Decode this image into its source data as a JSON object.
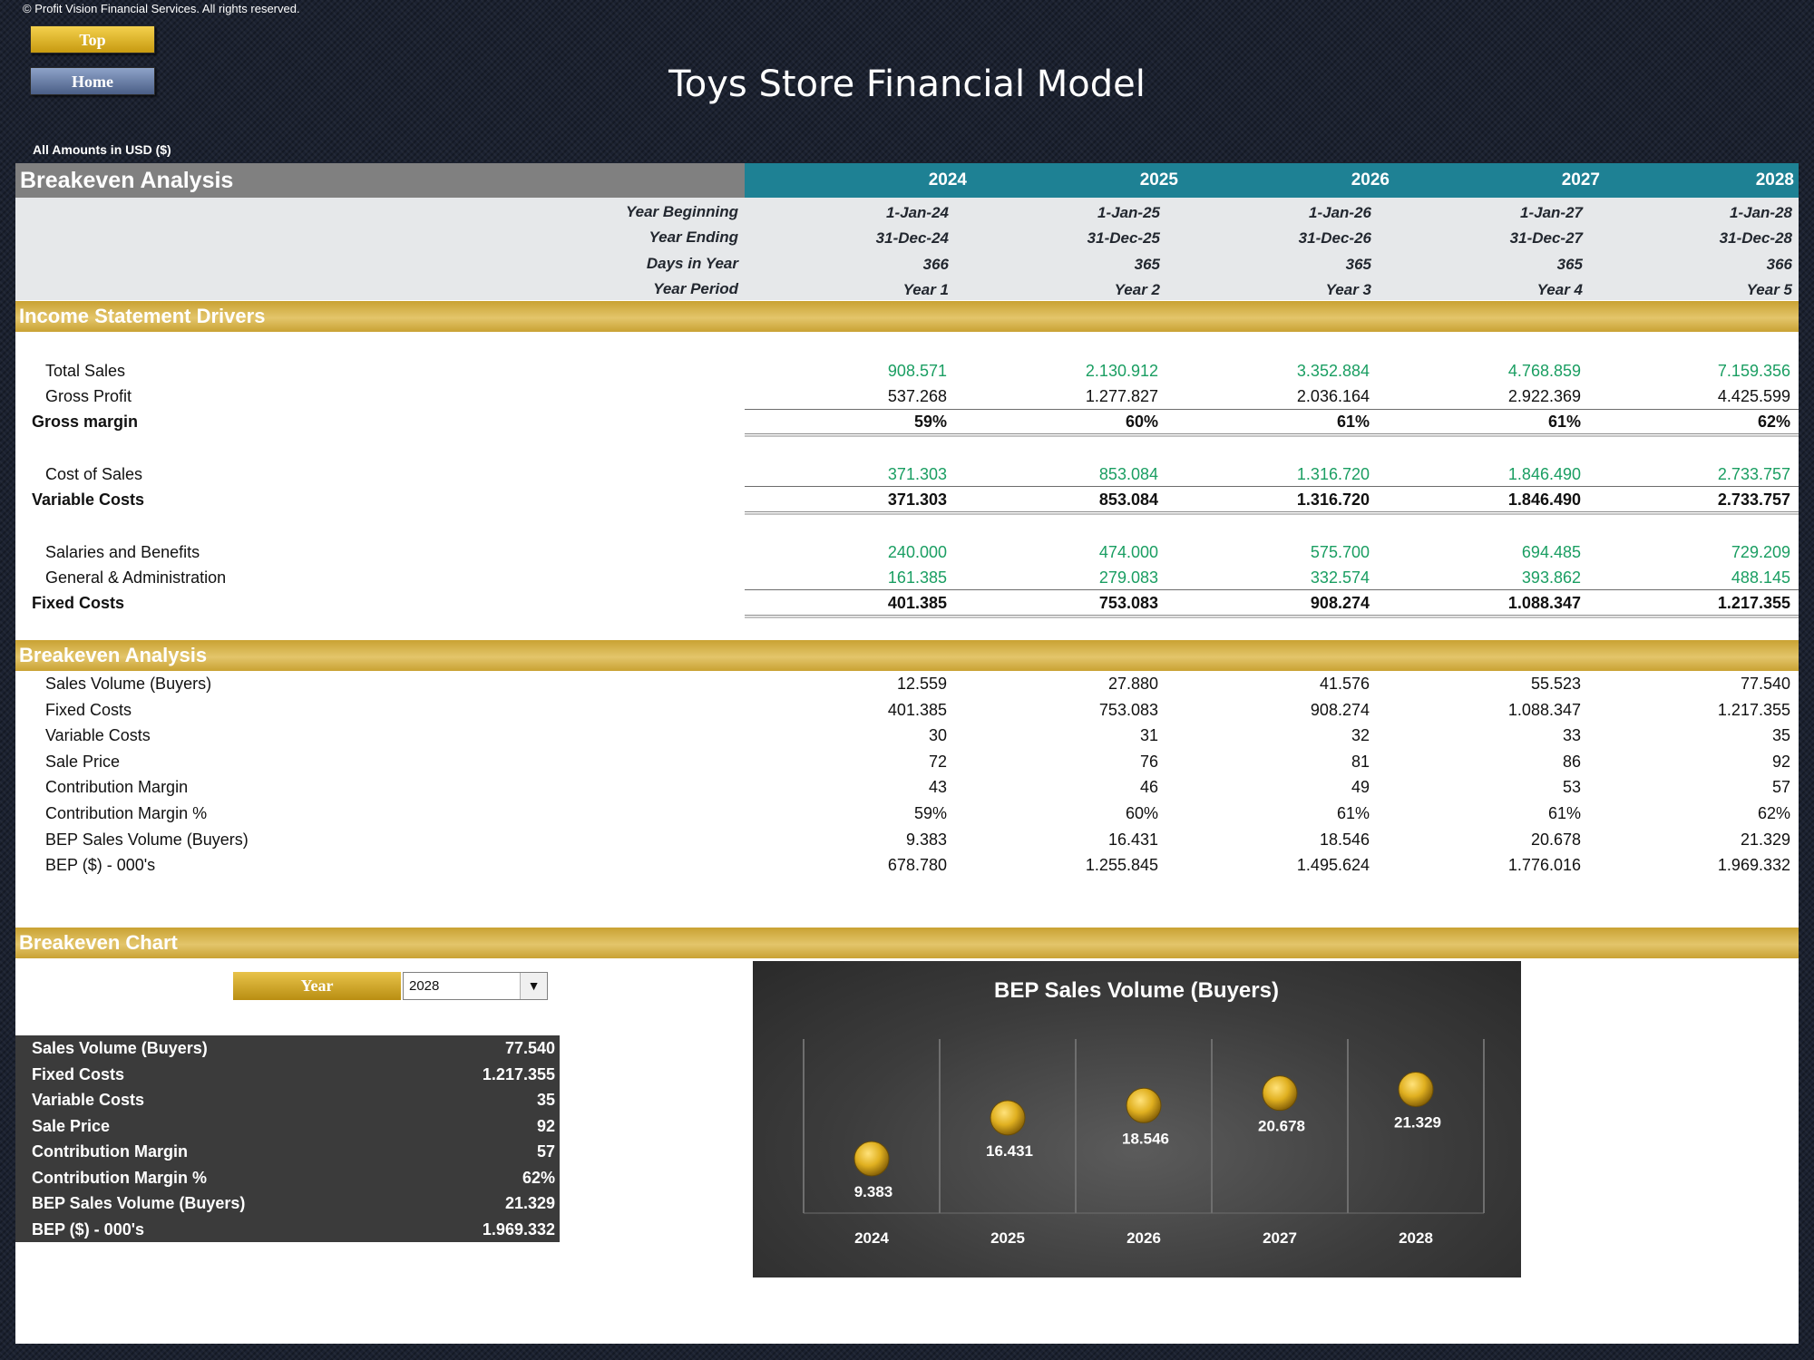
{
  "header": {
    "copyright": "© Profit Vision Financial Services. All rights reserved.",
    "top_button": "Top",
    "home_button": "Home",
    "app_title": "Toys Store Financial Model",
    "amounts_note": "All Amounts in  USD ($)"
  },
  "table_header": {
    "title": "Breakeven Analysis",
    "years": [
      "2024",
      "2025",
      "2026",
      "2027",
      "2028"
    ]
  },
  "period_info": {
    "labels": {
      "year_beginning": "Year Beginning",
      "year_ending": "Year Ending",
      "days_in_year": "Days in Year",
      "year_period": "Year Period"
    },
    "year_beginning": [
      "1-Jan-24",
      "1-Jan-25",
      "1-Jan-26",
      "1-Jan-27",
      "1-Jan-28"
    ],
    "year_ending": [
      "31-Dec-24",
      "31-Dec-25",
      "31-Dec-26",
      "31-Dec-27",
      "31-Dec-28"
    ],
    "days_in_year": [
      "366",
      "365",
      "365",
      "365",
      "366"
    ],
    "year_period": [
      "Year 1",
      "Year 2",
      "Year 3",
      "Year 4",
      "Year 5"
    ]
  },
  "income_statement_drivers": {
    "title": "Income Statement Drivers",
    "total_sales": {
      "label": "Total Sales",
      "values": [
        "908.571",
        "2.130.912",
        "3.352.884",
        "4.768.859",
        "7.159.356"
      ]
    },
    "gross_profit": {
      "label": "Gross Profit",
      "values": [
        "537.268",
        "1.277.827",
        "2.036.164",
        "2.922.369",
        "4.425.599"
      ]
    },
    "gross_margin": {
      "label": "Gross margin",
      "values": [
        "59%",
        "60%",
        "61%",
        "61%",
        "62%"
      ]
    },
    "cost_of_sales": {
      "label": "Cost of Sales",
      "values": [
        "371.303",
        "853.084",
        "1.316.720",
        "1.846.490",
        "2.733.757"
      ]
    },
    "variable_costs": {
      "label": "Variable Costs",
      "values": [
        "371.303",
        "853.084",
        "1.316.720",
        "1.846.490",
        "2.733.757"
      ]
    },
    "salaries": {
      "label": "Salaries and Benefits",
      "values": [
        "240.000",
        "474.000",
        "575.700",
        "694.485",
        "729.209"
      ]
    },
    "ga": {
      "label": "General & Administration",
      "values": [
        "161.385",
        "279.083",
        "332.574",
        "393.862",
        "488.145"
      ]
    },
    "fixed_costs": {
      "label": "Fixed Costs",
      "values": [
        "401.385",
        "753.083",
        "908.274",
        "1.088.347",
        "1.217.355"
      ]
    }
  },
  "breakeven_analysis": {
    "title": "Breakeven Analysis",
    "rows": [
      {
        "label": "Sales Volume (Buyers)",
        "values": [
          "12.559",
          "27.880",
          "41.576",
          "55.523",
          "77.540"
        ]
      },
      {
        "label": "Fixed Costs",
        "values": [
          "401.385",
          "753.083",
          "908.274",
          "1.088.347",
          "1.217.355"
        ]
      },
      {
        "label": "Variable Costs",
        "values": [
          "30",
          "31",
          "32",
          "33",
          "35"
        ]
      },
      {
        "label": "Sale Price",
        "values": [
          "72",
          "76",
          "81",
          "86",
          "92"
        ]
      },
      {
        "label": "Contribution Margin",
        "values": [
          "43",
          "46",
          "49",
          "53",
          "57"
        ]
      },
      {
        "label": "Contribution Margin %",
        "values": [
          "59%",
          "60%",
          "61%",
          "61%",
          "62%"
        ]
      },
      {
        "label": "BEP Sales Volume (Buyers)",
        "values": [
          "9.383",
          "16.431",
          "18.546",
          "20.678",
          "21.329"
        ]
      },
      {
        "label": "BEP ($) - 000's",
        "values": [
          "678.780",
          "1.255.845",
          "1.495.624",
          "1.776.016",
          "1.969.332"
        ]
      }
    ]
  },
  "breakeven_chart_section": {
    "title": "Breakeven Chart",
    "year_label": "Year",
    "year_selected": "2028"
  },
  "summary": {
    "rows": [
      {
        "label": "Sales Volume (Buyers)",
        "value": "77.540"
      },
      {
        "label": "Fixed Costs",
        "value": "1.217.355"
      },
      {
        "label": "Variable Costs",
        "value": "35"
      },
      {
        "label": "Sale Price",
        "value": "92"
      },
      {
        "label": "Contribution Margin",
        "value": "57"
      },
      {
        "label": "Contribution Margin %",
        "value": "62%"
      },
      {
        "label": "BEP Sales Volume (Buyers)",
        "value": "21.329"
      },
      {
        "label": "BEP ($) - 000's",
        "value": "1.969.332"
      }
    ]
  },
  "colors": {
    "background": "#1b2130",
    "header_gray": "#808080",
    "header_teal": "#1e8194",
    "section_gold": "#d4b04a",
    "green_value": "#1a9e62",
    "chart_marker": "#e0b020"
  },
  "chart_data": {
    "type": "scatter",
    "title": "BEP Sales Volume (Buyers)",
    "categories": [
      "2024",
      "2025",
      "2026",
      "2027",
      "2028"
    ],
    "values": [
      9383,
      16431,
      18546,
      20678,
      21329
    ],
    "value_labels": [
      "9.383",
      "16.431",
      "18.546",
      "20.678",
      "21.329"
    ],
    "ylim": [
      0,
      30000
    ],
    "grid": "vertical",
    "legend": "none"
  }
}
